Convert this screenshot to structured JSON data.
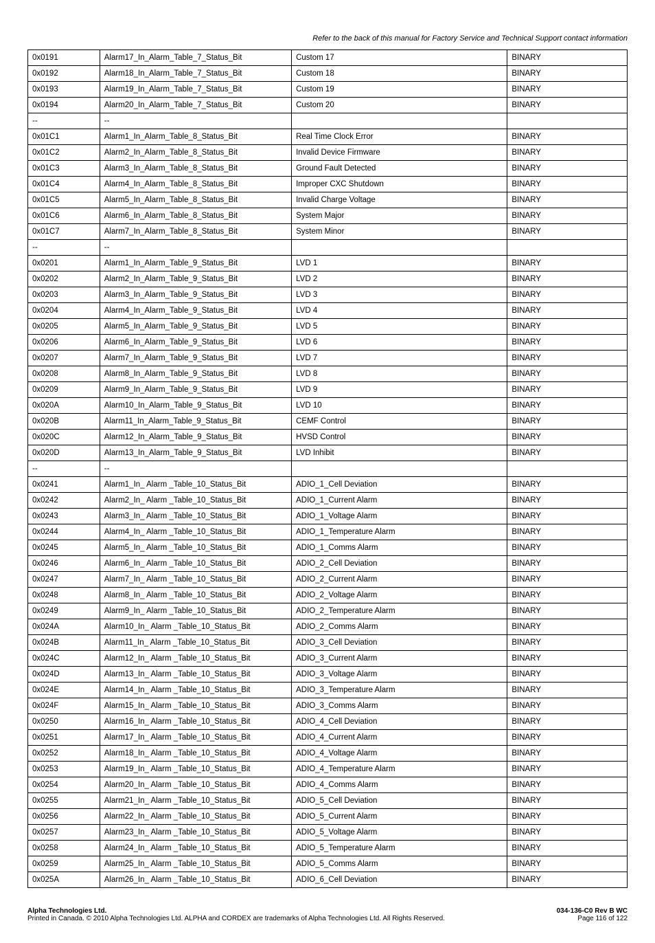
{
  "header_note": "Refer to the back of this manual for Factory Service and Technical Support contact information",
  "table": {
    "rows": [
      [
        "0x0191",
        "Alarm17_In_Alarm_Table_7_Status_Bit",
        "Custom 17",
        "BINARY"
      ],
      [
        "0x0192",
        "Alarm18_In_Alarm_Table_7_Status_Bit",
        "Custom 18",
        "BINARY"
      ],
      [
        "0x0193",
        "Alarm19_In_Alarm_Table_7_Status_Bit",
        "Custom 19",
        "BINARY"
      ],
      [
        "0x0194",
        "Alarm20_In_Alarm_Table_7_Status_Bit",
        "Custom 20",
        "BINARY"
      ],
      [
        "--",
        "--",
        "",
        ""
      ],
      [
        "0x01C1",
        "Alarm1_In_Alarm_Table_8_Status_Bit",
        "Real Time Clock Error",
        "BINARY"
      ],
      [
        "0x01C2",
        "Alarm2_In_Alarm_Table_8_Status_Bit",
        "Invalid Device Firmware",
        "BINARY"
      ],
      [
        "0x01C3",
        "Alarm3_In_Alarm_Table_8_Status_Bit",
        "Ground Fault Detected",
        "BINARY"
      ],
      [
        "0x01C4",
        "Alarm4_In_Alarm_Table_8_Status_Bit",
        "Improper CXC Shutdown",
        "BINARY"
      ],
      [
        "0x01C5",
        "Alarm5_In_Alarm_Table_8_Status_Bit",
        "Invalid Charge Voltage",
        "BINARY"
      ],
      [
        "0x01C6",
        "Alarm6_In_Alarm_Table_8_Status_Bit",
        "System Major",
        "BINARY"
      ],
      [
        "0x01C7",
        "Alarm7_In_Alarm_Table_8_Status_Bit",
        "System Minor",
        "BINARY"
      ],
      [
        "--",
        "--",
        "",
        ""
      ],
      [
        "0x0201",
        "Alarm1_In_Alarm_Table_9_Status_Bit",
        "LVD 1",
        "BINARY"
      ],
      [
        "0x0202",
        "Alarm2_In_Alarm_Table_9_Status_Bit",
        "LVD 2",
        "BINARY"
      ],
      [
        "0x0203",
        "Alarm3_In_Alarm_Table_9_Status_Bit",
        "LVD 3",
        "BINARY"
      ],
      [
        "0x0204",
        "Alarm4_In_Alarm_Table_9_Status_Bit",
        "LVD 4",
        "BINARY"
      ],
      [
        "0x0205",
        "Alarm5_In_Alarm_Table_9_Status_Bit",
        "LVD 5",
        "BINARY"
      ],
      [
        "0x0206",
        "Alarm6_In_Alarm_Table_9_Status_Bit",
        "LVD 6",
        "BINARY"
      ],
      [
        "0x0207",
        "Alarm7_In_Alarm_Table_9_Status_Bit",
        "LVD 7",
        "BINARY"
      ],
      [
        "0x0208",
        "Alarm8_In_Alarm_Table_9_Status_Bit",
        "LVD 8",
        "BINARY"
      ],
      [
        "0x0209",
        "Alarm9_In_Alarm_Table_9_Status_Bit",
        "LVD 9",
        "BINARY"
      ],
      [
        "0x020A",
        "Alarm10_In_Alarm_Table_9_Status_Bit",
        "LVD 10",
        "BINARY"
      ],
      [
        "0x020B",
        "Alarm11_In_Alarm_Table_9_Status_Bit",
        "CEMF Control",
        "BINARY"
      ],
      [
        "0x020C",
        "Alarm12_In_Alarm_Table_9_Status_Bit",
        "HVSD Control",
        "BINARY"
      ],
      [
        "0x020D",
        "Alarm13_In_Alarm_Table_9_Status_Bit",
        "LVD Inhibit",
        "BINARY"
      ],
      [
        "--",
        "--",
        "",
        ""
      ],
      [
        "0x0241",
        "Alarm1_In_ Alarm _Table_10_Status_Bit",
        "ADIO_1_Cell Deviation",
        "BINARY"
      ],
      [
        "0x0242",
        "Alarm2_In_ Alarm _Table_10_Status_Bit",
        "ADIO_1_Current Alarm",
        "BINARY"
      ],
      [
        "0x0243",
        "Alarm3_In_ Alarm _Table_10_Status_Bit",
        "ADIO_1_Voltage Alarm",
        "BINARY"
      ],
      [
        "0x0244",
        "Alarm4_In_ Alarm _Table_10_Status_Bit",
        "ADIO_1_Temperature Alarm",
        "BINARY"
      ],
      [
        "0x0245",
        "Alarm5_In_ Alarm _Table_10_Status_Bit",
        "ADIO_1_Comms Alarm",
        "BINARY"
      ],
      [
        "0x0246",
        "Alarm6_In_ Alarm _Table_10_Status_Bit",
        "ADIO_2_Cell Deviation",
        "BINARY"
      ],
      [
        "0x0247",
        "Alarm7_In_ Alarm _Table_10_Status_Bit",
        "ADIO_2_Current Alarm",
        "BINARY"
      ],
      [
        "0x0248",
        "Alarm8_In_ Alarm _Table_10_Status_Bit",
        "ADIO_2_Voltage Alarm",
        "BINARY"
      ],
      [
        "0x0249",
        "Alarm9_In_ Alarm _Table_10_Status_Bit",
        "ADIO_2_Temperature Alarm",
        "BINARY"
      ],
      [
        "0x024A",
        "Alarm10_In_ Alarm _Table_10_Status_Bit",
        "ADIO_2_Comms Alarm",
        "BINARY"
      ],
      [
        "0x024B",
        "Alarm11_In_ Alarm _Table_10_Status_Bit",
        "ADIO_3_Cell Deviation",
        "BINARY"
      ],
      [
        "0x024C",
        "Alarm12_In_ Alarm _Table_10_Status_Bit",
        "ADIO_3_Current Alarm",
        "BINARY"
      ],
      [
        "0x024D",
        "Alarm13_In_ Alarm _Table_10_Status_Bit",
        "ADIO_3_Voltage Alarm",
        "BINARY"
      ],
      [
        "0x024E",
        "Alarm14_In_ Alarm _Table_10_Status_Bit",
        "ADIO_3_Temperature Alarm",
        "BINARY"
      ],
      [
        "0x024F",
        "Alarm15_In_ Alarm _Table_10_Status_Bit",
        "ADIO_3_Comms Alarm",
        "BINARY"
      ],
      [
        "0x0250",
        "Alarm16_In_ Alarm _Table_10_Status_Bit",
        "ADIO_4_Cell Deviation",
        "BINARY"
      ],
      [
        "0x0251",
        "Alarm17_In_ Alarm _Table_10_Status_Bit",
        "ADIO_4_Current Alarm",
        "BINARY"
      ],
      [
        "0x0252",
        "Alarm18_In_ Alarm _Table_10_Status_Bit",
        "ADIO_4_Voltage Alarm",
        "BINARY"
      ],
      [
        "0x0253",
        "Alarm19_In_ Alarm _Table_10_Status_Bit",
        "ADIO_4_Temperature Alarm",
        "BINARY"
      ],
      [
        "0x0254",
        "Alarm20_In_ Alarm _Table_10_Status_Bit",
        "ADIO_4_Comms Alarm",
        "BINARY"
      ],
      [
        "0x0255",
        "Alarm21_In_ Alarm _Table_10_Status_Bit",
        "ADIO_5_Cell Deviation",
        "BINARY"
      ],
      [
        "0x0256",
        "Alarm22_In_ Alarm _Table_10_Status_Bit",
        "ADIO_5_Current Alarm",
        "BINARY"
      ],
      [
        "0x0257",
        "Alarm23_In_ Alarm _Table_10_Status_Bit",
        "ADIO_5_Voltage Alarm",
        "BINARY"
      ],
      [
        "0x0258",
        "Alarm24_In_ Alarm _Table_10_Status_Bit",
        "ADIO_5_Temperature Alarm",
        "BINARY"
      ],
      [
        "0x0259",
        "Alarm25_In_ Alarm _Table_10_Status_Bit",
        "ADIO_5_Comms Alarm",
        "BINARY"
      ],
      [
        "0x025A",
        "Alarm26_In_ Alarm _Table_10_Status_Bit",
        "ADIO_6_Cell Deviation",
        "BINARY"
      ]
    ]
  },
  "footer": {
    "company": "Alpha Technologies Ltd.",
    "copyright": "Printed in Canada.  © 2010 Alpha Technologies Ltd. ALPHA and CORDEX are trademarks of Alpha Technologies Ltd.  All Rights Reserved.",
    "doc_id": "034-136-C0  Rev B  WC",
    "page": "Page 116 of 122"
  }
}
